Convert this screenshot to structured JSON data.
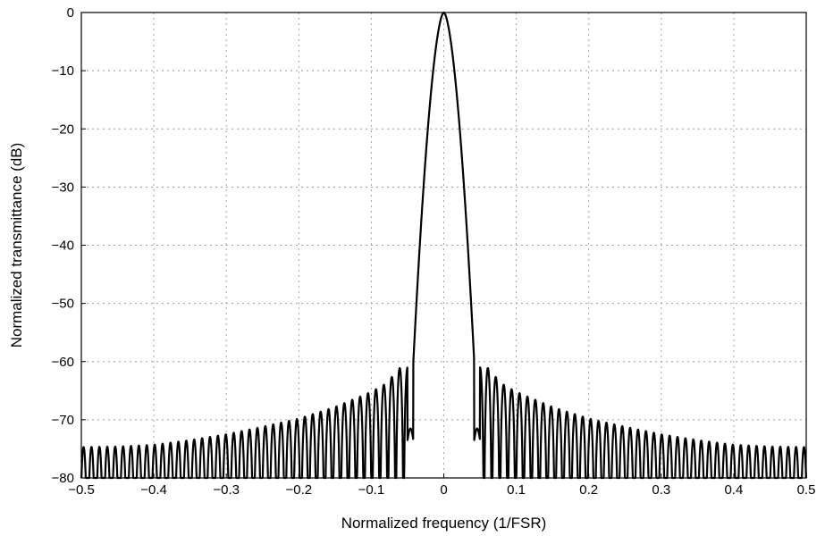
{
  "chart_data": {
    "type": "line",
    "title": "",
    "xlabel": "Normalized frequency (1/FSR)",
    "ylabel": "Normalized transmittance (dB)",
    "xlim": [
      -0.5,
      0.5
    ],
    "ylim": [
      -80,
      0
    ],
    "xticks": [
      -0.5,
      -0.4,
      -0.3,
      -0.2,
      -0.1,
      0,
      0.1,
      0.2,
      0.3,
      0.4,
      0.5
    ],
    "xtick_labels": [
      "−0.5",
      "−0.4",
      "−0.3",
      "−0.2",
      "−0.1",
      "0",
      "0.1",
      "0.2",
      "0.3",
      "0.4",
      "0.5"
    ],
    "yticks": [
      0,
      -10,
      -20,
      -30,
      -40,
      -50,
      -60,
      -70,
      -80
    ],
    "ytick_labels": [
      "0",
      "−10",
      "−20",
      "−30",
      "−40",
      "−50",
      "−60",
      "−70",
      "−80"
    ],
    "grid": true,
    "series": [
      {
        "points": [
          [
            -0.5,
            -80
          ],
          [
            -0.495,
            -74.7
          ],
          [
            -0.49,
            -80
          ],
          [
            -0.45,
            -74.6
          ],
          [
            -0.4,
            -74.3
          ],
          [
            -0.35,
            -73.5
          ],
          [
            -0.3,
            -72.5
          ],
          [
            -0.25,
            -71.2
          ],
          [
            -0.2,
            -69.8
          ],
          [
            -0.15,
            -67.8
          ],
          [
            -0.1,
            -65.2
          ],
          [
            -0.08,
            -63.8
          ],
          [
            -0.06,
            -61.0
          ],
          [
            -0.05,
            -73.5
          ],
          [
            -0.045,
            -72.0
          ],
          [
            -0.042,
            -60.0
          ],
          [
            -0.035,
            -38.0
          ],
          [
            -0.03,
            -25.0
          ],
          [
            -0.02,
            -12.0
          ],
          [
            -0.01,
            -4.0
          ],
          [
            0,
            0
          ],
          [
            0.01,
            -4.0
          ],
          [
            0.02,
            -12.0
          ],
          [
            0.03,
            -25.0
          ],
          [
            0.035,
            -38.0
          ],
          [
            0.042,
            -60.0
          ],
          [
            0.045,
            -72.0
          ],
          [
            0.05,
            -73.5
          ],
          [
            0.06,
            -61.0
          ],
          [
            0.08,
            -63.8
          ],
          [
            0.1,
            -65.2
          ],
          [
            0.15,
            -67.8
          ],
          [
            0.2,
            -69.8
          ],
          [
            0.25,
            -71.2
          ],
          [
            0.3,
            -72.5
          ],
          [
            0.35,
            -73.5
          ],
          [
            0.4,
            -74.3
          ],
          [
            0.45,
            -74.6
          ],
          [
            0.49,
            -80
          ],
          [
            0.495,
            -74.7
          ],
          [
            0.5,
            -80
          ]
        ],
        "mainlobe_halfwidth": 0.042,
        "sidelobe_period": 0.0109,
        "sidelobe_peaks": [
          [
            0.06,
            -61.0
          ],
          [
            0.08,
            -63.8
          ],
          [
            0.1,
            -65.2
          ],
          [
            0.15,
            -67.8
          ],
          [
            0.2,
            -69.8
          ],
          [
            0.25,
            -71.2
          ],
          [
            0.3,
            -72.5
          ],
          [
            0.35,
            -73.5
          ],
          [
            0.4,
            -74.3
          ],
          [
            0.45,
            -74.6
          ],
          [
            0.5,
            -74.7
          ]
        ]
      }
    ]
  }
}
